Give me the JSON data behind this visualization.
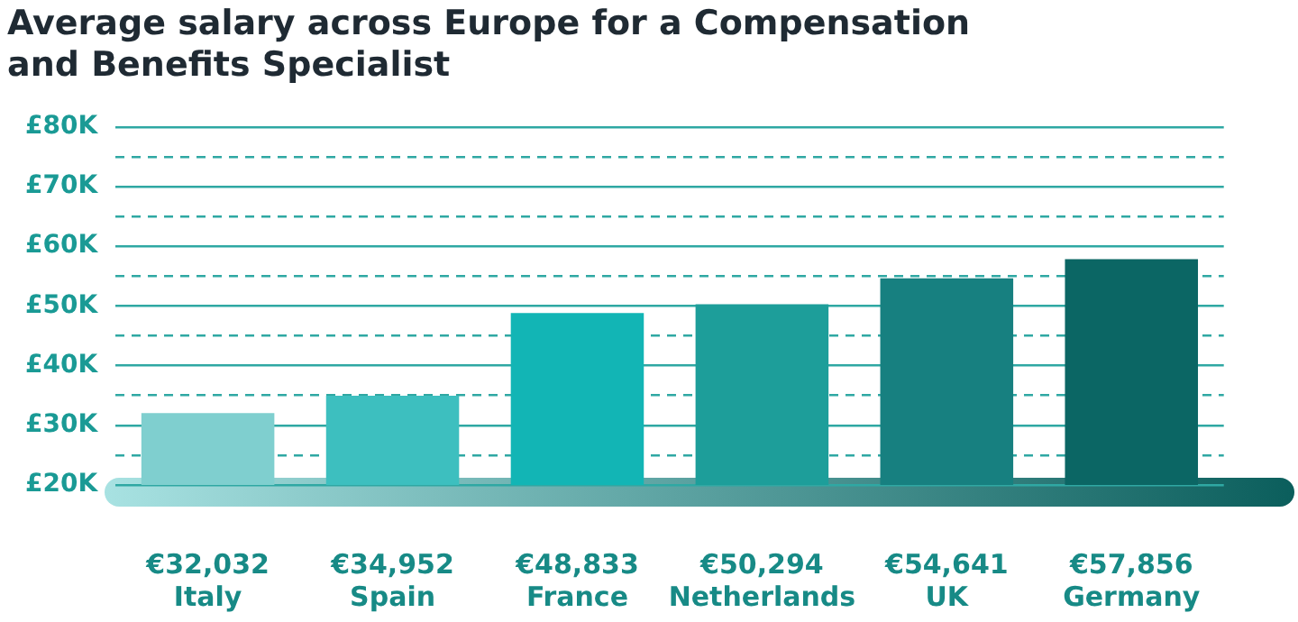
{
  "chart_data": {
    "type": "bar",
    "title": "Average salary across Europe for a Compensation and Benefits Specialist",
    "categories": [
      "Italy",
      "Spain",
      "France",
      "Netherlands",
      "UK",
      "Germany"
    ],
    "values": [
      32032,
      34952,
      48833,
      50294,
      54641,
      57856
    ],
    "value_labels": [
      "€32,032",
      "€34,952",
      "€48,833",
      "€50,294",
      "€54,641",
      "€57,856"
    ],
    "colors": [
      "#7fcfcf",
      "#3dbfbf",
      "#12b5b5",
      "#1d9e9a",
      "#178080",
      "#0b6664"
    ],
    "ylim": [
      20000,
      80000
    ],
    "yticks": [
      {
        "value": 20000,
        "label": "£20K"
      },
      {
        "value": 25000,
        "label": null
      },
      {
        "value": 30000,
        "label": "£30K"
      },
      {
        "value": 35000,
        "label": null
      },
      {
        "value": 40000,
        "label": "£40K"
      },
      {
        "value": 45000,
        "label": null
      },
      {
        "value": 50000,
        "label": "£50K"
      },
      {
        "value": 55000,
        "label": null
      },
      {
        "value": 60000,
        "label": "£60K"
      },
      {
        "value": 65000,
        "label": null
      },
      {
        "value": 70000,
        "label": "£70K"
      },
      {
        "value": 75000,
        "label": null
      },
      {
        "value": 80000,
        "label": "£80K"
      }
    ],
    "grid": "y",
    "legend": false
  }
}
